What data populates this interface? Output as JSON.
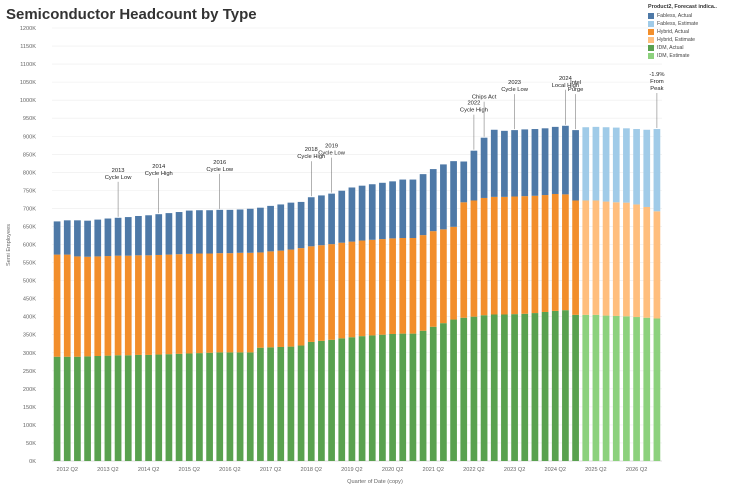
{
  "chart_data": {
    "type": "bar",
    "title": "Semiconductor Headcount by Type",
    "xlabel": "Quarter of Date (copy)",
    "ylabel": "Semi Employees",
    "ylim": [
      0,
      1200
    ],
    "y_ticks": [
      "0K",
      "50K",
      "100K",
      "150K",
      "200K",
      "250K",
      "300K",
      "350K",
      "400K",
      "450K",
      "500K",
      "550K",
      "600K",
      "650K",
      "700K",
      "750K",
      "800K",
      "850K",
      "900K",
      "950K",
      "1000K",
      "1050K",
      "1100K",
      "1150K",
      "1200K"
    ],
    "x_tick_labels": [
      "2012 Q2",
      "2013 Q2",
      "2014 Q2",
      "2015 Q2",
      "2016 Q2",
      "2017 Q2",
      "2018 Q2",
      "2019 Q2",
      "2020 Q2",
      "2021 Q2",
      "2022 Q2",
      "2023 Q2",
      "2024 Q2",
      "2025 Q2",
      "2026 Q2"
    ],
    "categories": [
      "2012 Q1",
      "2012 Q2",
      "2012 Q3",
      "2012 Q4",
      "2013 Q1",
      "2013 Q2",
      "2013 Q3",
      "2013 Q4",
      "2014 Q1",
      "2014 Q2",
      "2014 Q3",
      "2014 Q4",
      "2015 Q1",
      "2015 Q2",
      "2015 Q3",
      "2015 Q4",
      "2016 Q1",
      "2016 Q2",
      "2016 Q3",
      "2016 Q4",
      "2017 Q1",
      "2017 Q2",
      "2017 Q3",
      "2017 Q4",
      "2018 Q1",
      "2018 Q2",
      "2018 Q3",
      "2018 Q4",
      "2019 Q1",
      "2019 Q2",
      "2019 Q3",
      "2019 Q4",
      "2020 Q1",
      "2020 Q2",
      "2020 Q3",
      "2020 Q4",
      "2021 Q1",
      "2021 Q2",
      "2021 Q3",
      "2021 Q4",
      "2022 Q1",
      "2022 Q2",
      "2022 Q3",
      "2022 Q4",
      "2023 Q1",
      "2023 Q2",
      "2023 Q3",
      "2023 Q4",
      "2024 Q1",
      "2024 Q2",
      "2024 Q3",
      "2024 Q4",
      "2025 Q1",
      "2025 Q2",
      "2025 Q3",
      "2025 Q4",
      "2026 Q1",
      "2026 Q2",
      "2026 Q3",
      "2026 Q4"
    ],
    "is_estimate": [
      false,
      false,
      false,
      false,
      false,
      false,
      false,
      false,
      false,
      false,
      false,
      false,
      false,
      false,
      false,
      false,
      false,
      false,
      false,
      false,
      false,
      false,
      false,
      false,
      false,
      false,
      false,
      false,
      false,
      false,
      false,
      false,
      false,
      false,
      false,
      false,
      false,
      false,
      false,
      false,
      false,
      false,
      false,
      false,
      false,
      false,
      false,
      false,
      false,
      false,
      false,
      false,
      true,
      true,
      true,
      true,
      true,
      true,
      true,
      true
    ],
    "series": [
      {
        "name": "IDM",
        "values": [
          289,
          289,
          289,
          290,
          291,
          292,
          293,
          293,
          294,
          294,
          295,
          296,
          297,
          298,
          299,
          300,
          301,
          301,
          301,
          301,
          314,
          315,
          316,
          317,
          320,
          330,
          333,
          336,
          340,
          343,
          346,
          348,
          350,
          352,
          353,
          353,
          361,
          372,
          382,
          392,
          397,
          400,
          404,
          406,
          406,
          407,
          408,
          410,
          413,
          416,
          418,
          405,
          405,
          405,
          403,
          402,
          401,
          399,
          397,
          395
        ]
      },
      {
        "name": "Hybrid",
        "values": [
          283,
          283,
          278,
          276,
          276,
          276,
          276,
          276,
          276,
          276,
          276,
          276,
          276,
          276,
          276,
          275,
          275,
          275,
          276,
          276,
          264,
          266,
          267,
          269,
          270,
          265,
          265,
          265,
          265,
          265,
          265,
          265,
          265,
          265,
          265,
          265,
          265,
          265,
          260,
          257,
          320,
          322,
          325,
          326,
          326,
          326,
          326,
          325,
          324,
          324,
          321,
          317,
          317,
          317,
          316,
          315,
          315,
          312,
          307,
          297
        ]
      },
      {
        "name": "Fabless",
        "values": [
          92,
          95,
          100,
          100,
          102,
          104,
          105,
          107,
          109,
          111,
          113,
          115,
          117,
          120,
          120,
          120,
          120,
          120,
          120,
          122,
          124,
          126,
          128,
          130,
          128,
          136,
          138,
          140,
          144,
          150,
          152,
          154,
          156,
          158,
          162,
          162,
          169,
          172,
          180,
          182,
          113,
          138,
          167,
          186,
          183,
          184,
          185,
          185,
          185,
          186,
          190,
          195,
          203,
          204,
          206,
          207,
          206,
          209,
          214,
          228
        ]
      }
    ],
    "legend": {
      "title": "Product2, Forecast indica..",
      "position": "top-right",
      "entries": [
        {
          "label": "Fabless, Actual",
          "color": "#4e79a7"
        },
        {
          "label": "Fabless, Estimate",
          "color": "#a0cbe8"
        },
        {
          "label": "Hybrid, Actual",
          "color": "#f28e2b"
        },
        {
          "label": "Hybrid, Estimate",
          "color": "#ffbe7d"
        },
        {
          "label": "IDM, Actual",
          "color": "#59a14f"
        },
        {
          "label": "IDM, Estimate",
          "color": "#8cd17d"
        }
      ]
    },
    "colors": {
      "IDM": {
        "actual": "#59a14f",
        "estimate": "#8cd17d"
      },
      "Hybrid": {
        "actual": "#f28e2b",
        "estimate": "#ffbe7d"
      },
      "Fabless": {
        "actual": "#4e79a7",
        "estimate": "#a0cbe8"
      }
    },
    "annotations": [
      {
        "lines": [
          "2013",
          "Cycle Low"
        ],
        "x_index": 6
      },
      {
        "lines": [
          "2014",
          "Cycle High"
        ],
        "x_index": 10
      },
      {
        "lines": [
          "2016",
          "Cycle Low"
        ],
        "x_index": 16
      },
      {
        "lines": [
          "2018",
          "Cycle High"
        ],
        "x_index": 25
      },
      {
        "lines": [
          "2019",
          "Cycle Low"
        ],
        "x_index": 27
      },
      {
        "lines": [
          "2022",
          "Cycle High"
        ],
        "x_index": 41
      },
      {
        "lines": [
          "Chips Act"
        ],
        "x_index": 42
      },
      {
        "lines": [
          "2023",
          "Cycle Low"
        ],
        "x_index": 45
      },
      {
        "lines": [
          "2024",
          "Local High"
        ],
        "x_index": 50
      },
      {
        "lines": [
          "Intel",
          "Purge"
        ],
        "x_index": 51
      },
      {
        "lines": [
          "-1.9%",
          "From",
          "Peak"
        ],
        "x_index": 59
      }
    ],
    "grid": true
  }
}
